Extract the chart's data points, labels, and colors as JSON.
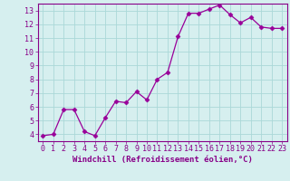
{
  "x": [
    0,
    1,
    2,
    3,
    4,
    5,
    6,
    7,
    8,
    9,
    10,
    11,
    12,
    13,
    14,
    15,
    16,
    17,
    18,
    19,
    20,
    21,
    22,
    23
  ],
  "y": [
    3.9,
    4.0,
    5.8,
    5.8,
    4.2,
    3.9,
    5.2,
    6.4,
    6.3,
    7.1,
    6.5,
    8.0,
    8.5,
    11.1,
    12.8,
    12.8,
    13.1,
    13.4,
    12.7,
    12.1,
    12.5,
    11.8,
    11.7,
    11.7
  ],
  "line_color": "#990099",
  "marker": "D",
  "marker_size": 2.5,
  "bg_color": "#d6efef",
  "grid_color": "#aad8d8",
  "xlabel": "Windchill (Refroidissement éolien,°C)",
  "xlim": [
    -0.5,
    23.5
  ],
  "ylim": [
    3.5,
    13.5
  ],
  "yticks": [
    4,
    5,
    6,
    7,
    8,
    9,
    10,
    11,
    12,
    13
  ],
  "xticks": [
    0,
    1,
    2,
    3,
    4,
    5,
    6,
    7,
    8,
    9,
    10,
    11,
    12,
    13,
    14,
    15,
    16,
    17,
    18,
    19,
    20,
    21,
    22,
    23
  ],
  "xlabel_fontsize": 6.5,
  "tick_fontsize": 6.0,
  "axis_label_color": "#880088",
  "tick_color": "#880088",
  "spine_color": "#880088",
  "line_width": 0.9
}
